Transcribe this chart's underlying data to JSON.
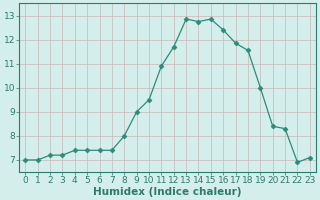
{
  "x": [
    0,
    1,
    2,
    3,
    4,
    5,
    6,
    7,
    8,
    9,
    10,
    11,
    12,
    13,
    14,
    15,
    16,
    17,
    18,
    19,
    20,
    21,
    22,
    23
  ],
  "y": [
    7.0,
    7.0,
    7.2,
    7.2,
    7.4,
    7.4,
    7.4,
    7.4,
    8.0,
    9.0,
    9.5,
    10.9,
    11.7,
    12.85,
    12.75,
    12.85,
    12.4,
    11.85,
    11.55,
    10.0,
    8.4,
    8.3,
    6.9,
    7.1
  ],
  "line_color": "#2e8b7a",
  "marker_color": "#2e8b7a",
  "bg_color": "#d4eeeb",
  "grid_color_h": "#c8b8b8",
  "grid_color_v": "#c8b8b8",
  "xlabel": "Humidex (Indice chaleur)",
  "xlim": [
    -0.5,
    23.5
  ],
  "ylim": [
    6.5,
    13.5
  ],
  "yticks": [
    7,
    8,
    9,
    10,
    11,
    12,
    13
  ],
  "xticks": [
    0,
    1,
    2,
    3,
    4,
    5,
    6,
    7,
    8,
    9,
    10,
    11,
    12,
    13,
    14,
    15,
    16,
    17,
    18,
    19,
    20,
    21,
    22,
    23
  ],
  "tick_label_color": "#2e7b6e",
  "xlabel_color": "#2e7b6e",
  "xlabel_fontsize": 7.5,
  "tick_fontsize": 6.5,
  "spine_color": "#2e7b6e"
}
